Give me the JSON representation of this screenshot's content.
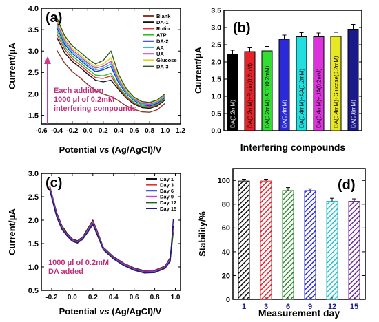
{
  "chart_data": [
    {
      "type": "line",
      "panel_label": "(a)",
      "xlabel_parts": [
        "Potential ",
        "vs",
        " (Ag/AgCl)/V"
      ],
      "ylabel": "Current/μA",
      "xlim": [
        -0.6,
        1.2
      ],
      "ylim": [
        1.3,
        4.0
      ],
      "x_ticks": [
        "-0.6",
        "-0.4",
        "-0.2",
        "0.0",
        "0.2",
        "0.4",
        "0.6",
        "0.8",
        "1.0",
        "1.2"
      ],
      "y_ticks": [
        "1.5",
        "2.0",
        "2.5",
        "3.0",
        "3.5",
        "4.0"
      ],
      "legend_position": "top-right",
      "annotation_lines": [
        "Each addition",
        "1000 μl of 0.2mM",
        "interfering compounds"
      ],
      "annotation_color": "#d03a8a",
      "series": [
        {
          "name": "Blank",
          "color": "#8B3A2A",
          "x": [
            -0.4,
            -0.3,
            -0.2,
            -0.1,
            0.0,
            0.1,
            0.2,
            0.3,
            0.4,
            0.5,
            0.6,
            0.7,
            0.8,
            0.9,
            1.0
          ],
          "y": [
            3.02,
            2.72,
            2.52,
            2.38,
            2.22,
            2.08,
            2.0,
            1.94,
            1.84,
            1.72,
            1.64,
            1.58,
            1.57,
            1.63,
            1.78
          ]
        },
        {
          "name": "DA-1",
          "color": "#111111",
          "x": [
            -0.4,
            -0.3,
            -0.2,
            -0.1,
            0.0,
            0.1,
            0.2,
            0.3,
            0.4,
            0.5,
            0.6,
            0.7,
            0.8,
            0.9,
            1.0
          ],
          "y": [
            3.32,
            2.96,
            2.76,
            2.62,
            2.46,
            2.32,
            2.28,
            2.32,
            2.1,
            1.9,
            1.76,
            1.68,
            1.66,
            1.72,
            1.86
          ]
        },
        {
          "name": "Rutin",
          "color": "#e0303a",
          "x": [
            -0.4,
            -0.3,
            -0.2,
            -0.1,
            0.0,
            0.1,
            0.2,
            0.3,
            0.4,
            0.5,
            0.6,
            0.7,
            0.8,
            0.9,
            1.0
          ],
          "y": [
            3.4,
            3.04,
            2.82,
            2.68,
            2.52,
            2.38,
            2.36,
            2.42,
            2.14,
            1.92,
            1.78,
            1.7,
            1.68,
            1.74,
            1.88
          ]
        },
        {
          "name": "ATP",
          "color": "#29c329",
          "x": [
            -0.4,
            -0.3,
            -0.2,
            -0.1,
            0.0,
            0.1,
            0.2,
            0.3,
            0.4,
            0.5,
            0.6,
            0.7,
            0.8,
            0.9,
            1.0
          ],
          "y": [
            3.48,
            3.1,
            2.88,
            2.74,
            2.58,
            2.44,
            2.42,
            2.48,
            2.18,
            1.95,
            1.8,
            1.72,
            1.7,
            1.76,
            1.9
          ]
        },
        {
          "name": "DA-2",
          "color": "#1f2ad8",
          "x": [
            -0.4,
            -0.3,
            -0.2,
            -0.1,
            0.0,
            0.1,
            0.2,
            0.3,
            0.4,
            0.5,
            0.6,
            0.7,
            0.8,
            0.9,
            1.0
          ],
          "y": [
            3.55,
            3.16,
            2.94,
            2.8,
            2.64,
            2.52,
            2.56,
            2.64,
            2.26,
            2.0,
            1.84,
            1.75,
            1.72,
            1.78,
            1.92
          ]
        },
        {
          "name": "AA",
          "color": "#18c8d8",
          "x": [
            -0.4,
            -0.3,
            -0.2,
            -0.1,
            0.0,
            0.1,
            0.2,
            0.3,
            0.4,
            0.5,
            0.6,
            0.7,
            0.8,
            0.9,
            1.0
          ],
          "y": [
            3.6,
            3.2,
            2.98,
            2.84,
            2.68,
            2.56,
            2.6,
            2.7,
            2.3,
            2.02,
            1.86,
            1.76,
            1.74,
            1.8,
            1.94
          ]
        },
        {
          "name": "UA",
          "color": "#d23ad6",
          "x": [
            -0.4,
            -0.3,
            -0.2,
            -0.1,
            0.0,
            0.1,
            0.2,
            0.3,
            0.4,
            0.5,
            0.6,
            0.7,
            0.8,
            0.9,
            1.0
          ],
          "y": [
            3.66,
            3.25,
            3.02,
            2.88,
            2.72,
            2.6,
            2.65,
            2.76,
            2.34,
            2.05,
            1.88,
            1.78,
            1.76,
            1.82,
            1.96
          ]
        },
        {
          "name": "Glucose",
          "color": "#d8d822",
          "x": [
            -0.4,
            -0.3,
            -0.2,
            -0.1,
            0.0,
            0.1,
            0.2,
            0.3,
            0.4,
            0.5,
            0.6,
            0.7,
            0.8,
            0.9,
            1.0
          ],
          "y": [
            3.72,
            3.3,
            3.06,
            2.92,
            2.76,
            2.64,
            2.7,
            2.84,
            2.38,
            2.08,
            1.9,
            1.8,
            1.78,
            1.84,
            1.98
          ]
        },
        {
          "name": "DA-3",
          "color": "#2e5a1e",
          "x": [
            -0.4,
            -0.3,
            -0.2,
            -0.1,
            0.0,
            0.1,
            0.2,
            0.3,
            0.4,
            0.5,
            0.6,
            0.7,
            0.8,
            0.9,
            1.0
          ],
          "y": [
            3.78,
            3.36,
            3.12,
            2.98,
            2.82,
            2.7,
            2.78,
            3.0,
            2.45,
            2.12,
            1.92,
            1.82,
            1.8,
            1.86,
            2.0
          ]
        }
      ]
    },
    {
      "type": "bar",
      "panel_label": "(b)",
      "xlabel": "Interfering compounds",
      "ylabel": "Current/μA",
      "ylim": [
        0.0,
        3.5
      ],
      "y_ticks": [
        "0.0",
        "0.5",
        "1.0",
        "1.5",
        "2.0",
        "2.5",
        "3.0",
        "3.5"
      ],
      "categories": [
        "DA(0.2mM)",
        "DA(0.2mM)+Rutin(0.2mM)",
        "DA(0.2mM)+ATP(0.2mM)",
        "DA(0.4mM)",
        "DA(0.4mM)+AA(0.2mM)",
        "DA(0.4mM)+UA(0.2mM)",
        "DA(0.4mM)+Glucose(0.2mM)",
        "DA(0.6mM)"
      ],
      "values": [
        2.22,
        2.3,
        2.32,
        2.66,
        2.73,
        2.73,
        2.74,
        2.95
      ],
      "errors": [
        0.12,
        0.11,
        0.13,
        0.12,
        0.12,
        0.11,
        0.12,
        0.14
      ],
      "colors": [
        "#000000",
        "#e8222a",
        "#33dd33",
        "#2a2ad8",
        "#22dede",
        "#dd33dd",
        "#e8e822",
        "#1a1a8a"
      ]
    },
    {
      "type": "line",
      "panel_label": "(c)",
      "xlabel_parts": [
        "Potential ",
        "vs",
        " (Ag/AgCl)/V"
      ],
      "ylabel": "Current/μA",
      "xlim": [
        -0.3,
        1.05
      ],
      "ylim": [
        0.5,
        3.0
      ],
      "x_ticks": [
        "-0.2",
        "0.0",
        "0.2",
        "0.4",
        "0.6",
        "0.8",
        "1.0"
      ],
      "y_ticks": [
        "0.5",
        "1.0",
        "1.5",
        "2.0",
        "2.5",
        "3.0"
      ],
      "legend_position": "top-right",
      "annotation_lines": [
        "1000 μl of 0.2mM",
        "DA added"
      ],
      "annotation_color": "#d03a8a",
      "series": [
        {
          "name": "Day 1",
          "color": "#111111",
          "x": [
            -0.22,
            -0.15,
            -0.1,
            -0.05,
            0.0,
            0.05,
            0.1,
            0.15,
            0.2,
            0.25,
            0.3,
            0.4,
            0.5,
            0.6,
            0.7,
            0.8,
            0.9,
            0.95,
            0.98
          ],
          "y": [
            2.74,
            2.15,
            1.88,
            1.72,
            1.6,
            1.56,
            1.64,
            1.82,
            2.0,
            1.72,
            1.42,
            1.22,
            1.08,
            0.98,
            0.92,
            0.93,
            1.02,
            1.2,
            1.88
          ]
        },
        {
          "name": "Day 3",
          "color": "#e0303a",
          "x": [
            -0.22,
            -0.15,
            -0.1,
            -0.05,
            0.0,
            0.05,
            0.1,
            0.15,
            0.2,
            0.25,
            0.3,
            0.4,
            0.5,
            0.6,
            0.7,
            0.8,
            0.9,
            0.95,
            0.98
          ],
          "y": [
            2.72,
            2.13,
            1.86,
            1.7,
            1.59,
            1.55,
            1.63,
            1.8,
            1.98,
            1.7,
            1.41,
            1.21,
            1.07,
            0.97,
            0.91,
            0.92,
            1.01,
            1.18,
            1.84
          ]
        },
        {
          "name": "Day 6",
          "color": "#1f2ad8",
          "x": [
            -0.22,
            -0.15,
            -0.1,
            -0.05,
            0.0,
            0.05,
            0.1,
            0.15,
            0.2,
            0.25,
            0.3,
            0.4,
            0.5,
            0.6,
            0.7,
            0.8,
            0.9,
            0.95,
            0.98
          ],
          "y": [
            2.7,
            2.11,
            1.85,
            1.69,
            1.58,
            1.54,
            1.62,
            1.79,
            1.96,
            1.69,
            1.4,
            1.2,
            1.06,
            0.96,
            0.9,
            0.91,
            1.0,
            1.17,
            1.8
          ]
        },
        {
          "name": "Day 9",
          "color": "#d23ad6",
          "x": [
            -0.22,
            -0.15,
            -0.1,
            -0.05,
            0.0,
            0.05,
            0.1,
            0.15,
            0.2,
            0.25,
            0.3,
            0.4,
            0.5,
            0.6,
            0.7,
            0.8,
            0.9,
            0.95,
            0.98
          ],
          "y": [
            2.69,
            2.1,
            1.84,
            1.68,
            1.57,
            1.53,
            1.61,
            1.78,
            1.95,
            1.68,
            1.39,
            1.19,
            1.05,
            0.95,
            0.89,
            0.9,
            0.99,
            1.16,
            1.78
          ]
        },
        {
          "name": "Day 12",
          "color": "#2e5a1e",
          "x": [
            -0.22,
            -0.15,
            -0.1,
            -0.05,
            0.0,
            0.05,
            0.1,
            0.15,
            0.2,
            0.25,
            0.3,
            0.4,
            0.5,
            0.6,
            0.7,
            0.8,
            0.9,
            0.95,
            0.98
          ],
          "y": [
            2.67,
            2.08,
            1.82,
            1.67,
            1.56,
            1.52,
            1.6,
            1.76,
            1.93,
            1.66,
            1.38,
            1.18,
            1.04,
            0.94,
            0.88,
            0.89,
            0.98,
            1.14,
            1.74
          ]
        },
        {
          "name": "Day 15",
          "color": "#1a1a8a",
          "x": [
            -0.22,
            -0.15,
            -0.1,
            -0.05,
            0.0,
            0.05,
            0.1,
            0.15,
            0.2,
            0.25,
            0.3,
            0.4,
            0.5,
            0.6,
            0.7,
            0.8,
            0.9,
            0.95,
            0.98
          ],
          "y": [
            2.65,
            2.06,
            1.8,
            1.66,
            1.55,
            1.51,
            1.59,
            1.74,
            1.91,
            1.64,
            1.37,
            1.17,
            1.03,
            0.93,
            0.87,
            0.88,
            0.97,
            1.12,
            2.02
          ]
        }
      ]
    },
    {
      "type": "bar",
      "panel_label": "(d)",
      "xlabel": "Measurement day",
      "ylabel": "Stability/%",
      "ylim": [
        0,
        110
      ],
      "y_ticks": [
        "0",
        "20",
        "40",
        "60",
        "80",
        "100"
      ],
      "categories": [
        "1",
        "3",
        "6",
        "9",
        "12",
        "15"
      ],
      "values": [
        99.5,
        99.5,
        91.5,
        91.5,
        82.5,
        82.5
      ],
      "errors": [
        1.5,
        1.5,
        2.5,
        1.5,
        2.5,
        2.0
      ],
      "colors": [
        "#111111",
        "#e8222a",
        "#2e8a2e",
        "#2a2ad8",
        "#22c0d0",
        "#6a2a9a"
      ]
    }
  ]
}
